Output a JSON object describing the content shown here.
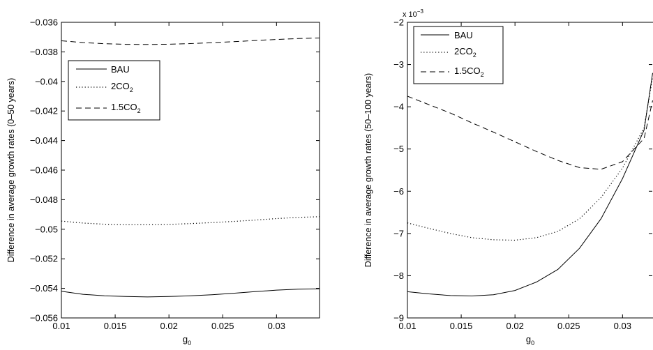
{
  "chart_data": [
    {
      "type": "line",
      "xlabel": "g",
      "xlabel_sub": "0",
      "ylabel": "Difference in average growth rates (0–50 years)",
      "xlim": [
        0.01,
        0.034
      ],
      "ylim": [
        -0.056,
        -0.036
      ],
      "xticks": [
        0.01,
        0.015,
        0.02,
        0.025,
        0.03
      ],
      "xtick_labels": [
        "0.01",
        "0.015",
        "0.02",
        "0.025",
        "0.03"
      ],
      "yticks": [
        -0.036,
        -0.038,
        -0.04,
        -0.042,
        -0.044,
        -0.046,
        -0.048,
        -0.05,
        -0.052,
        -0.054,
        -0.056
      ],
      "ytick_labels": [
        "−0.036",
        "−0.038",
        "−0.04",
        "−0.042",
        "−0.044",
        "−0.046",
        "−0.048",
        "−0.05",
        "−0.052",
        "−0.054",
        "−0.056"
      ],
      "grid": false,
      "legend": {
        "position": "upper-left",
        "entries": [
          {
            "text": "BAU",
            "style": "solid"
          },
          {
            "text": "2CO",
            "sub": "2",
            "style": "dotted"
          },
          {
            "text": "1.5CO",
            "sub": "2",
            "style": "dashed"
          }
        ]
      },
      "series": [
        {
          "name": "BAU",
          "style": "solid",
          "x": [
            0.01,
            0.012,
            0.014,
            0.016,
            0.018,
            0.02,
            0.022,
            0.024,
            0.026,
            0.028,
            0.03,
            0.032,
            0.034
          ],
          "y": [
            -0.0542,
            -0.0544,
            -0.0545,
            -0.05455,
            -0.05458,
            -0.05455,
            -0.0545,
            -0.05443,
            -0.05433,
            -0.05422,
            -0.05412,
            -0.05405,
            -0.05403
          ]
        },
        {
          "name": "2CO2",
          "style": "dotted",
          "x": [
            0.01,
            0.012,
            0.014,
            0.016,
            0.018,
            0.02,
            0.022,
            0.024,
            0.026,
            0.028,
            0.03,
            0.032,
            0.034
          ],
          "y": [
            -0.04945,
            -0.04958,
            -0.04966,
            -0.0497,
            -0.0497,
            -0.04967,
            -0.04962,
            -0.04955,
            -0.04947,
            -0.04938,
            -0.04928,
            -0.0492,
            -0.04915
          ]
        },
        {
          "name": "1.5CO2",
          "style": "dashed",
          "x": [
            0.01,
            0.012,
            0.014,
            0.016,
            0.018,
            0.02,
            0.022,
            0.024,
            0.026,
            0.028,
            0.03,
            0.032,
            0.034
          ],
          "y": [
            -0.03725,
            -0.03737,
            -0.03745,
            -0.03749,
            -0.0375,
            -0.03748,
            -0.03744,
            -0.03738,
            -0.03731,
            -0.03723,
            -0.03716,
            -0.0371,
            -0.03706
          ]
        }
      ]
    },
    {
      "type": "line",
      "xlabel": "g",
      "xlabel_sub": "0",
      "ylabel": "Difference in average growth rates (50–100 years)",
      "y_multiplier": "x 10",
      "y_multiplier_exp": "−3",
      "xlim": [
        0.01,
        0.034
      ],
      "ylim": [
        -9,
        -2
      ],
      "xticks": [
        0.01,
        0.015,
        0.02,
        0.025,
        0.03
      ],
      "xtick_labels": [
        "0.01",
        "0.015",
        "0.02",
        "0.025",
        "0.03"
      ],
      "yticks": [
        -2,
        -3,
        -4,
        -5,
        -6,
        -7,
        -8,
        -9
      ],
      "ytick_labels": [
        "−2",
        "−3",
        "−4",
        "−5",
        "−6",
        "−7",
        "−8",
        "−9"
      ],
      "grid": false,
      "legend": {
        "position": "upper-left",
        "entries": [
          {
            "text": "BAU",
            "style": "solid"
          },
          {
            "text": "2CO",
            "sub": "2",
            "style": "dotted"
          },
          {
            "text": "1.5CO",
            "sub": "2",
            "style": "dashed"
          }
        ]
      },
      "series": [
        {
          "name": "BAU",
          "style": "solid",
          "x": [
            0.01,
            0.012,
            0.014,
            0.016,
            0.018,
            0.02,
            0.022,
            0.024,
            0.026,
            0.028,
            0.03,
            0.032,
            0.034
          ],
          "y": [
            -8.38,
            -8.43,
            -8.47,
            -8.48,
            -8.45,
            -8.35,
            -8.15,
            -7.85,
            -7.35,
            -6.65,
            -5.7,
            -4.55,
            -3.2
          ]
        },
        {
          "name": "2CO2",
          "style": "dotted",
          "x": [
            0.01,
            0.012,
            0.014,
            0.016,
            0.018,
            0.02,
            0.022,
            0.024,
            0.026,
            0.028,
            0.03,
            0.032,
            0.034
          ],
          "y": [
            -6.75,
            -6.88,
            -7.0,
            -7.1,
            -7.15,
            -7.16,
            -7.1,
            -6.95,
            -6.65,
            -6.15,
            -5.45,
            -4.5,
            -3.3
          ]
        },
        {
          "name": "1.5CO2",
          "style": "dashed",
          "x": [
            0.01,
            0.012,
            0.014,
            0.016,
            0.018,
            0.02,
            0.022,
            0.024,
            0.026,
            0.028,
            0.03,
            0.032,
            0.034
          ],
          "y": [
            -3.75,
            -3.95,
            -4.15,
            -4.38,
            -4.6,
            -4.83,
            -5.06,
            -5.27,
            -5.44,
            -5.48,
            -5.3,
            -4.75,
            -3.85
          ]
        }
      ]
    }
  ]
}
